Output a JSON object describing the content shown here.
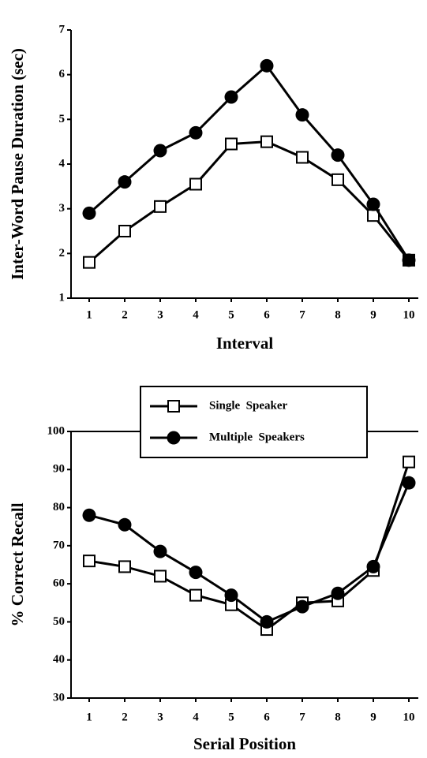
{
  "chart_data": [
    {
      "type": "line",
      "xlabel": "Interval",
      "ylabel": "Inter-Word Pause Duration (sec)",
      "categories": [
        "1",
        "2",
        "3",
        "4",
        "5",
        "6",
        "7",
        "8",
        "9",
        "10"
      ],
      "ylim": [
        1,
        7
      ],
      "yticks": [
        1,
        2,
        3,
        4,
        5,
        6,
        7
      ],
      "series": [
        {
          "color": "#000000",
          "marker": "square",
          "values": [
            1.8,
            2.5,
            3.05,
            3.55,
            4.45,
            4.5,
            4.15,
            3.65,
            2.85,
            1.85
          ]
        },
        {
          "color": "#000000",
          "marker": "circle",
          "values": [
            2.9,
            3.6,
            4.3,
            4.7,
            5.5,
            6.2,
            5.1,
            4.2,
            3.1,
            1.85
          ]
        }
      ]
    },
    {
      "type": "line",
      "xlabel": "Serial Position",
      "ylabel": "% Correct Recall",
      "categories": [
        "1",
        "2",
        "3",
        "4",
        "5",
        "6",
        "7",
        "8",
        "9",
        "10"
      ],
      "ylim": [
        30,
        100
      ],
      "yticks": [
        30,
        40,
        50,
        60,
        70,
        80,
        90,
        100
      ],
      "series": [
        {
          "name": "Single  Speaker",
          "color": "#000000",
          "marker": "square",
          "values": [
            66,
            64.5,
            62,
            57,
            54.5,
            48,
            55,
            55.5,
            63.5,
            92
          ]
        },
        {
          "name": "Multiple  Speakers",
          "color": "#000000",
          "marker": "circle",
          "values": [
            78,
            75.5,
            68.5,
            63,
            57,
            50,
            54,
            57.5,
            64.5,
            86.5
          ]
        }
      ]
    }
  ]
}
